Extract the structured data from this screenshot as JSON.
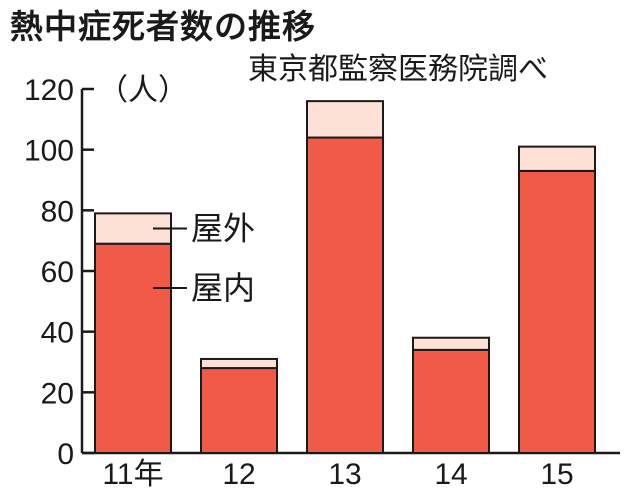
{
  "chart_data": {
    "type": "bar",
    "title": "熱中症死者数の推移",
    "source": "東京都監察医務院調べ",
    "ylabel": "（人）",
    "ylim": [
      0,
      120
    ],
    "yticks": [
      "0",
      "20",
      "40",
      "60",
      "80",
      "100",
      "120"
    ],
    "categories": [
      "11年",
      "12",
      "13",
      "14",
      "15"
    ],
    "series": [
      {
        "name": "屋内",
        "values": [
          69,
          28,
          104,
          34,
          93
        ]
      },
      {
        "name": "屋外",
        "values": [
          10,
          3,
          12,
          4,
          8
        ]
      }
    ],
    "stacked": true,
    "colors": {
      "indoor": "#f05a46",
      "outdoor": "#fde1d6",
      "outline": "#1a1a1a"
    },
    "legend_placement": "inside first bar"
  }
}
